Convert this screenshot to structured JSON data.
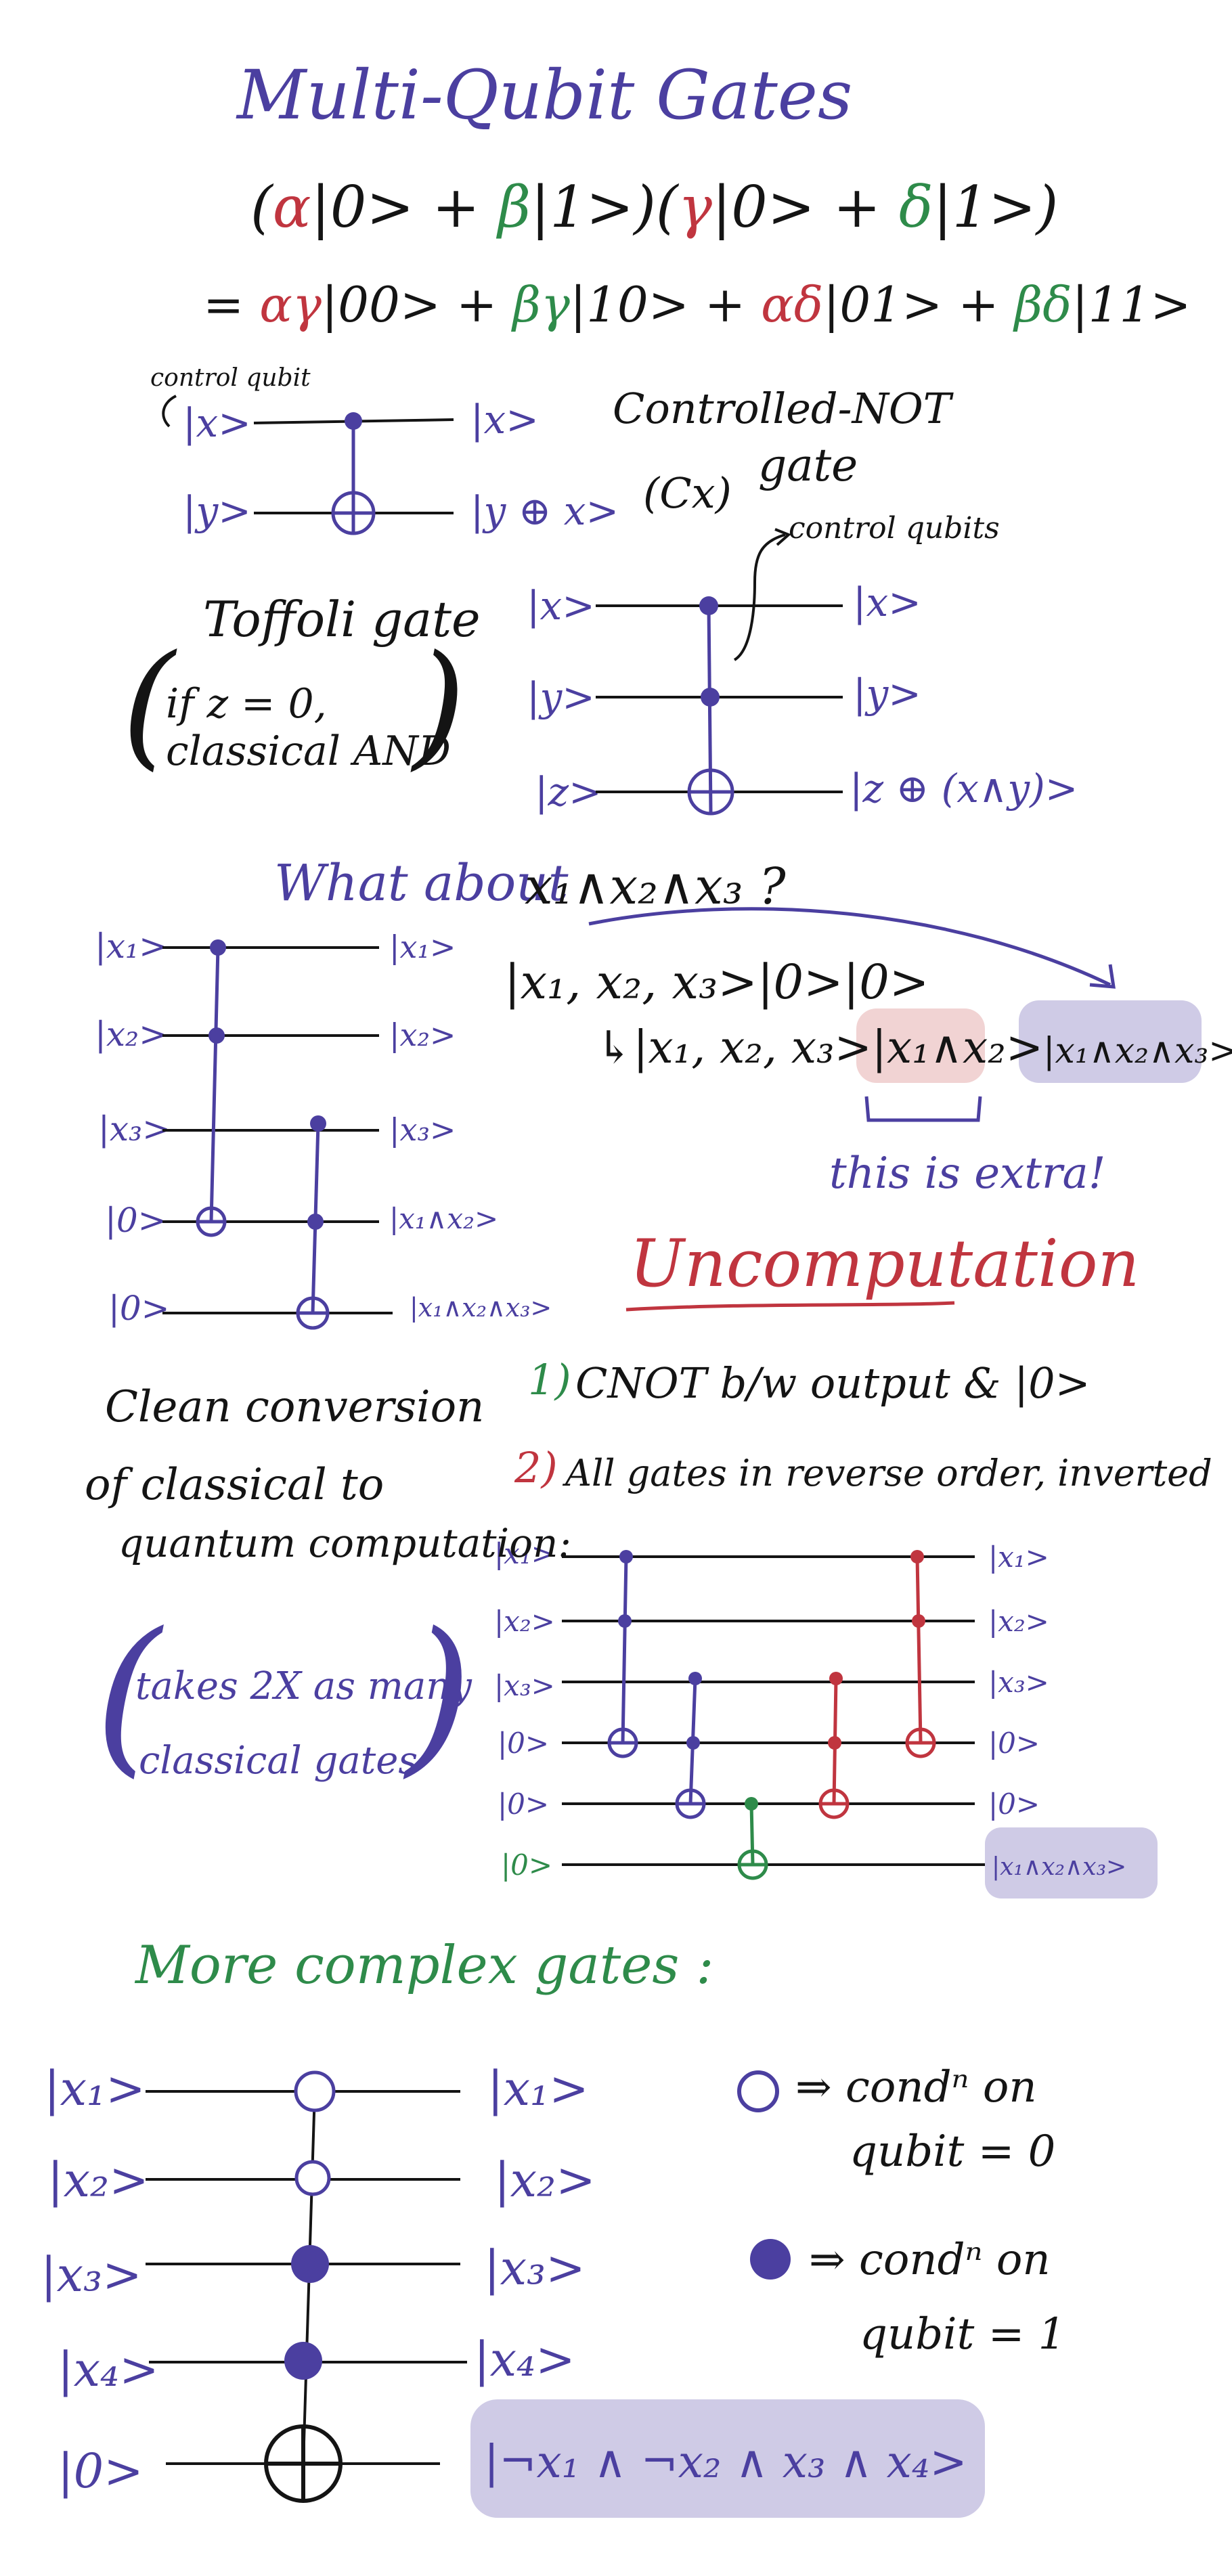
{
  "title": "Multi-Qubit Gates",
  "product": {
    "line1": [
      "(",
      "α",
      "|0> + ",
      "β",
      "|1>",
      ")(",
      "γ",
      "|0> + ",
      "δ",
      "|1>",
      ")"
    ],
    "line2": [
      "= ",
      "αγ",
      "|00> + ",
      "βγ",
      "|10> + ",
      "αδ",
      "|01> + ",
      "βδ",
      "|11>"
    ]
  },
  "cnot": {
    "control_label": "control qubit",
    "in_top": "|x>",
    "in_bottom": "|y>",
    "out_top": "|x>",
    "out_bottom": "|y ⊕ x>",
    "name_line1": "Controlled-NOT",
    "name_line2": "gate",
    "name_symbol": "(Cx)"
  },
  "toffoli": {
    "control_label": "control qubits",
    "name": "Toffoli gate",
    "note_line1": "if z = 0,",
    "note_line2": "classical AND",
    "inputs": [
      "|x>",
      "|y>",
      "|z>"
    ],
    "outputs": [
      "|x>",
      "|y>",
      "|z ⊕ (x∧y)>"
    ]
  },
  "what_about": {
    "prefix": "What about",
    "expr": "x₁∧x₂∧x₃ ?"
  },
  "three_and": {
    "inputs": [
      "|x₁>",
      "|x₂>",
      "|x₃>",
      "|0>",
      "|0>"
    ],
    "outputs": [
      "|x₁>",
      "|x₂>",
      "|x₃>",
      "|x₁∧x₂>",
      "|x₁∧x₂∧x₃>"
    ]
  },
  "state_eq": {
    "line1": "|x₁, x₂, x₃>|0>|0>",
    "line2_prefix": "↳|x₁, x₂, x₃>",
    "extra_term": "|x₁∧x₂>",
    "final_term": "|x₁∧x₂∧x₃>",
    "extra_note": "this is extra!"
  },
  "uncomputation": {
    "title": "Uncomputation",
    "step1_num": "1)",
    "step1": "CNOT b/w output & |0>",
    "step2_num": "2)",
    "step2": "All gates in reverse order, inverted",
    "inputs": [
      "|x₁>",
      "|x₂>",
      "|x₃>",
      "|0>",
      "|0>",
      "|0>"
    ],
    "outputs": [
      "|x₁>",
      "|x₂>",
      "|x₃>",
      "|0>",
      "|0>",
      "|x₁∧x₂∧x₃>"
    ]
  },
  "clean_note": {
    "line1": "Clean conversion",
    "line2": "of classical to",
    "line3": "quantum computation:",
    "paren1": "takes 2X as many",
    "paren2": "classical gates"
  },
  "complex": {
    "title": "More complex gates :",
    "inputs": [
      "|x₁>",
      "|x₂>",
      "|x₃>",
      "|x₄>",
      "|0>"
    ],
    "outputs": [
      "|x₁>",
      "|x₂>",
      "|x₃>",
      "|x₄>"
    ],
    "result": "|¬x₁ ∧ ¬x₂ ∧ x₃ ∧ x₄>",
    "legend_open_1": "⇒ condⁿ on",
    "legend_open_2": "qubit = 0",
    "legend_filled_1": "⇒ condⁿ on",
    "legend_filled_2": "qubit = 1"
  },
  "colors": {
    "purple": "#4b3fa0",
    "red": "#c0353f",
    "green": "#2e8b4a",
    "highlight_purple": "#cfcbe6",
    "highlight_pink": "#f1d3d3"
  }
}
